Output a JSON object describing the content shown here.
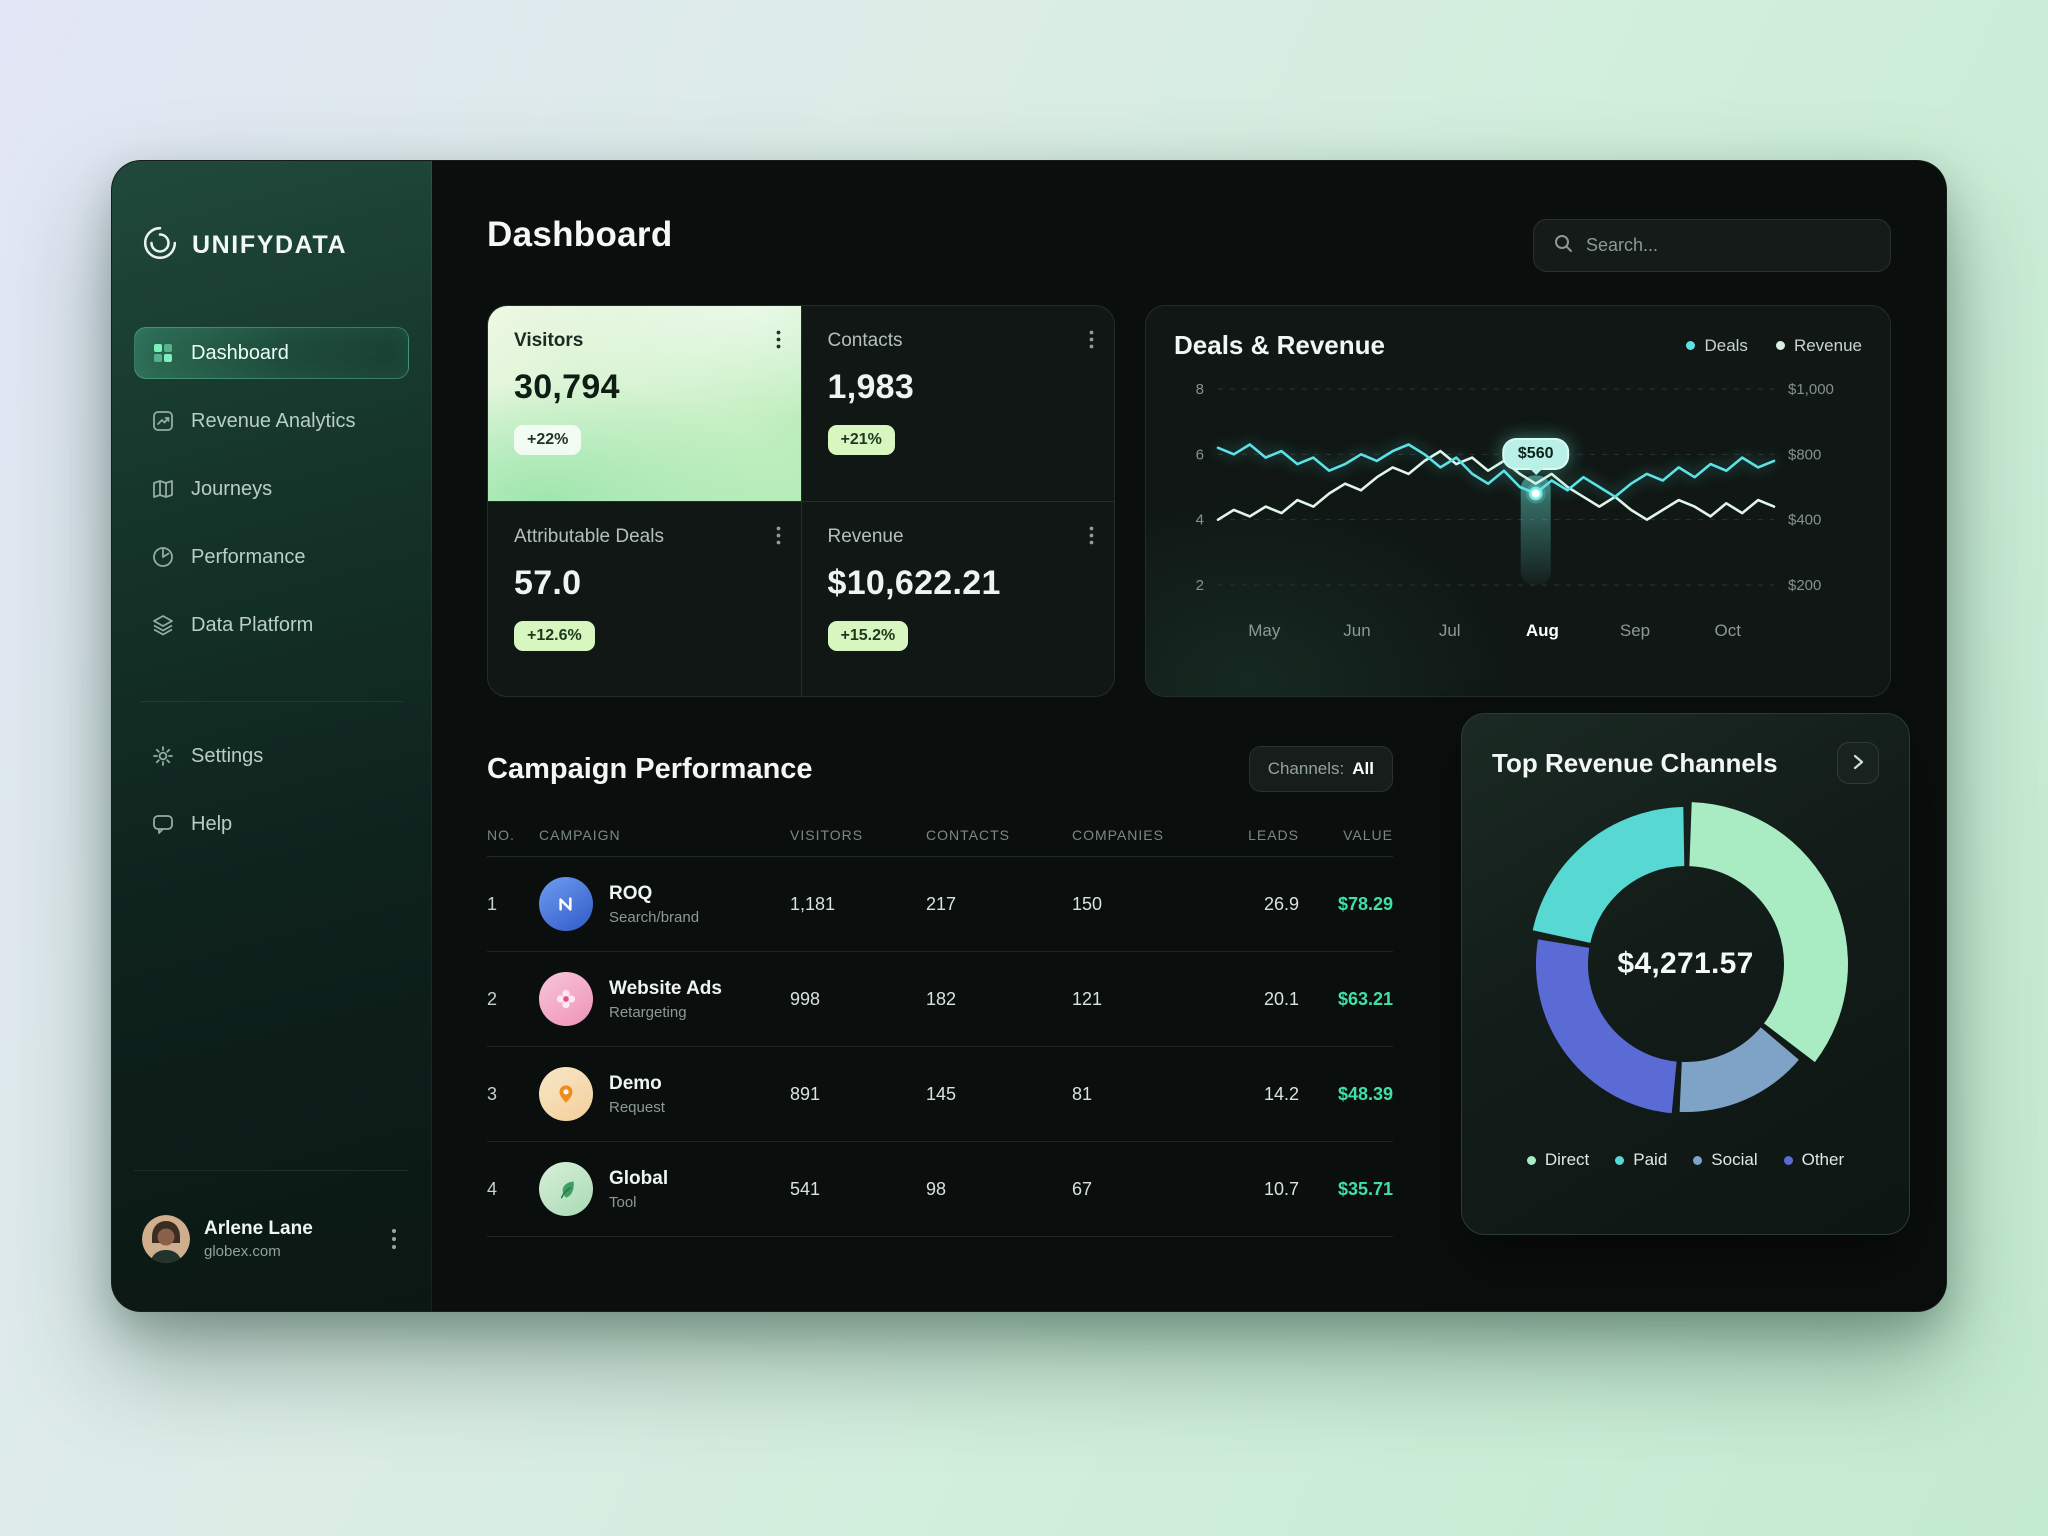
{
  "app": {
    "brand": "UNIFYDATA"
  },
  "sidebar": {
    "items": [
      {
        "label": "Dashboard",
        "active": true
      },
      {
        "label": "Revenue Analytics"
      },
      {
        "label": "Journeys"
      },
      {
        "label": "Performance"
      },
      {
        "label": "Data Platform"
      }
    ],
    "secondary": [
      {
        "label": "Settings"
      },
      {
        "label": "Help"
      }
    ],
    "user": {
      "name": "Arlene Lane",
      "org": "globex.com"
    }
  },
  "header": {
    "title": "Dashboard",
    "search_placeholder": "Search..."
  },
  "stats": {
    "cards": [
      {
        "label": "Visitors",
        "value": "30,794",
        "delta": "+22%"
      },
      {
        "label": "Contacts",
        "value": "1,983",
        "delta": "+21%"
      },
      {
        "label": "Attributable Deals",
        "value": "57.0",
        "delta": "+12.6%"
      },
      {
        "label": "Revenue",
        "value": "$10,622.21",
        "delta": "+15.2%"
      }
    ]
  },
  "deals_card": {
    "title": "Deals & Revenue",
    "legend": [
      {
        "label": "Deals",
        "color": "#5ce2e6"
      },
      {
        "label": "Revenue",
        "color": "#d9efe0"
      }
    ]
  },
  "campaigns": {
    "title": "Campaign Performance",
    "filter_prefix": "Channels:",
    "filter_value": "All",
    "columns": [
      "NO.",
      "CAMPAIGN",
      "VISITORS",
      "CONTACTS",
      "COMPANIES",
      "LEADS",
      "VALUE"
    ],
    "rows": [
      {
        "no": "1",
        "name": "ROQ",
        "subtitle": "Search/brand",
        "visitors": "1,181",
        "contacts": "217",
        "companies": "150",
        "leads": "26.9",
        "value": "$78.29"
      },
      {
        "no": "2",
        "name": "Website Ads",
        "subtitle": "Retargeting",
        "visitors": "998",
        "contacts": "182",
        "companies": "121",
        "leads": "20.1",
        "value": "$63.21"
      },
      {
        "no": "3",
        "name": "Demo",
        "subtitle": "Request",
        "visitors": "891",
        "contacts": "145",
        "companies": "81",
        "leads": "14.2",
        "value": "$48.39"
      },
      {
        "no": "4",
        "name": "Global",
        "subtitle": "Tool",
        "visitors": "541",
        "contacts": "98",
        "companies": "67",
        "leads": "10.7",
        "value": "$35.71"
      }
    ]
  },
  "channels_card": {
    "title": "Top Revenue Channels",
    "center_total": "$4,271.57",
    "legend": [
      {
        "label": "Direct",
        "color": "#a9ecc4"
      },
      {
        "label": "Paid",
        "color": "#57d8d2"
      },
      {
        "label": "Social",
        "color": "#7ea3c6"
      },
      {
        "label": "Other",
        "color": "#5b6bd5"
      }
    ]
  },
  "chart_data": [
    {
      "type": "line",
      "title": "Deals & Revenue",
      "x_labels": [
        "May",
        "Jun",
        "Jul",
        "Aug",
        "Sep",
        "Oct"
      ],
      "bold_x_label": "Aug",
      "y_ticks": [
        8,
        6,
        4,
        2
      ],
      "y_left_ticks": [
        "8",
        "6",
        "4",
        "2"
      ],
      "y_right_ticks": [
        "$1,000",
        "$800",
        "$400",
        "$200"
      ],
      "y_range": [
        2,
        8
      ],
      "grid": "dashed-horizontal",
      "legend_position": "top-right",
      "highlight": {
        "x_label": "Aug",
        "index": 20,
        "tooltip": "$560"
      },
      "series": [
        {
          "name": "Deals",
          "color": "#5ce2e6",
          "values": [
            6.2,
            6.0,
            6.3,
            5.9,
            6.1,
            5.7,
            5.9,
            5.5,
            5.7,
            6.0,
            5.8,
            6.1,
            6.3,
            6.0,
            5.6,
            5.9,
            5.4,
            5.1,
            5.5,
            5.0,
            4.8,
            5.2,
            4.9,
            5.3,
            5.0,
            4.7,
            5.1,
            5.4,
            5.2,
            5.6,
            5.3,
            5.7,
            5.5,
            5.9,
            5.6,
            5.8
          ]
        },
        {
          "name": "Revenue",
          "color": "#e2f5e9",
          "values": [
            4.0,
            4.3,
            4.1,
            4.4,
            4.2,
            4.6,
            4.4,
            4.8,
            5.1,
            4.9,
            5.3,
            5.6,
            5.4,
            5.8,
            6.1,
            5.7,
            5.9,
            5.5,
            5.8,
            5.4,
            5.1,
            5.4,
            5.0,
            4.7,
            4.4,
            4.7,
            4.3,
            4.0,
            4.3,
            4.6,
            4.4,
            4.1,
            4.5,
            4.2,
            4.6,
            4.4
          ]
        }
      ]
    },
    {
      "type": "donut",
      "title": "Top Revenue Channels",
      "center_label": "$4,271.57",
      "unit": "percent (estimated from arc sizes)",
      "segments": [
        {
          "label": "Direct",
          "value": 36,
          "color": "#a9ecc4",
          "outer_r": 162
        },
        {
          "label": "Social",
          "value": 15,
          "color": "#7ea3c6",
          "outer_r": 148
        },
        {
          "label": "Other",
          "value": 27,
          "color": "#5b6bd5",
          "outer_r": 150
        },
        {
          "label": "Paid",
          "value": 22,
          "color": "#57d8d2",
          "outer_r": 157
        }
      ],
      "inner_r": 98,
      "gap_deg": 3,
      "start_deg": 2,
      "legend_position": "bottom"
    }
  ]
}
